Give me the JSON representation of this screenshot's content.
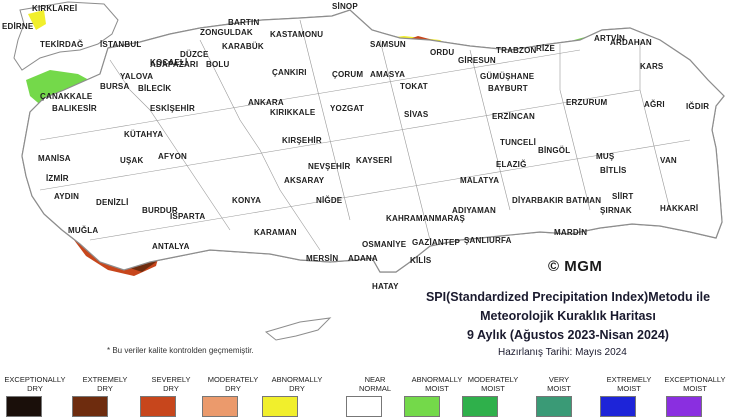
{
  "map": {
    "title_line1": "SPI(Standardized Precipitation Index)Metodu ile",
    "title_line2": "Meteorolojik Kuraklık Haritası",
    "title_line3": "9 Aylık (Ağustos 2023-Nisan 2024)",
    "prepared_date": "Hazırlanış Tarihi: Mayıs 2024",
    "credit": "© MGM",
    "note": "* Bu veriler kalite kontrolden geçmemiştir.",
    "colors": {
      "exceptionally_dry": "#1a0f0a",
      "extremely_dry": "#6e2c0e",
      "severely_dry": "#c7461c",
      "moderately_dry": "#eb9a6c",
      "abnormally_dry": "#f1ef2c",
      "near_normal": "#ffffff",
      "abnormally_moist": "#74d94a",
      "moderately_moist": "#2fb04b",
      "very_moist": "#3a9a76",
      "extremely_moist": "#1d24d8",
      "exceptionally_moist": "#8a2fe0",
      "background": "#ffffff",
      "country_fill": "#ffffff",
      "border": "#8d8d8d"
    }
  },
  "legend": [
    {
      "line1": "EXCEPTIONALLY",
      "line2": "DRY",
      "color": "#1a0f0a"
    },
    {
      "line1": "EXTREMELY",
      "line2": "DRY",
      "color": "#6e2c0e"
    },
    {
      "line1": "SEVERELY",
      "line2": "DRY",
      "color": "#c7461c"
    },
    {
      "line1": "MODERATELY",
      "line2": "DRY",
      "color": "#eb9a6c"
    },
    {
      "line1": "ABNORMALLY",
      "line2": "DRY",
      "color": "#f1ef2c"
    },
    {
      "line1": "NEAR",
      "line2": "NORMAL",
      "color": "#ffffff"
    },
    {
      "line1": "ABNORMALLY",
      "line2": "MOIST",
      "color": "#74d94a"
    },
    {
      "line1": "MODERATELY",
      "line2": "MOIST",
      "color": "#2fb04b"
    },
    {
      "line1": "VERY",
      "line2": "MOIST",
      "color": "#3a9a76"
    },
    {
      "line1": "EXTREMELY",
      "line2": "MOIST",
      "color": "#1d24d8"
    },
    {
      "line1": "EXCEPTIONALLY",
      "line2": "MOIST",
      "color": "#8a2fe0"
    }
  ],
  "cities": [
    "KIRKLAREİ",
    "EDİRNE",
    "TEKİRDAĞ",
    "İSTANBUL",
    "KOCAELİ",
    "ADAPAZARI",
    "DÜZCE",
    "BOLU",
    "ZONGULDAK",
    "BARTIN",
    "KARABÜK",
    "KASTAMONU",
    "SİNOP",
    "SAMSUN",
    "ORDU",
    "GİRESUN",
    "TRABZON",
    "RİZE",
    "ARTVİN",
    "ARDAHAN",
    "KARS",
    "IĞDIR",
    "AĞRI",
    "YALOVA",
    "BURSA",
    "BİLECİK",
    "ÇANAKKALE",
    "BALIKESİR",
    "ESKİŞEHİR",
    "ÇANKIRI",
    "ÇORUM",
    "AMASYA",
    "TOKAT",
    "GÜMÜŞHANE",
    "BAYBURT",
    "ERZURUM",
    "ERZİNCAN",
    "ANKARA",
    "KIRIKKALE",
    "YOZGAT",
    "SİVAS",
    "KÜTAHYA",
    "TUNCELİ",
    "BİNGÖL",
    "MUŞ",
    "VAN",
    "MANİSA",
    "UŞAK",
    "AFYON",
    "KIRŞEHİR",
    "NEVŞEHİR",
    "KAYSERİ",
    "ELAZIĞ",
    "MALATYA",
    "BİTLİS",
    "İZMİR",
    "AYDIN",
    "DENİZLİ",
    "AKSARAY",
    "NİĞDE",
    "KAHRAMANMARAŞ",
    "ADIYAMAN",
    "DİYARBAKIR",
    "BATMAN",
    "SİİRT",
    "HAKKARİ",
    "ŞIRNAK",
    "MUĞLA",
    "BURDUR",
    "ISPARTA",
    "KONYA",
    "KARAMAN",
    "OSMANİYE",
    "GAZİANTEP",
    "ŞANLIURFA",
    "MARDİN",
    "ANTALYA",
    "MERSİN",
    "ADANA",
    "KİLİS",
    "HATAY"
  ]
}
